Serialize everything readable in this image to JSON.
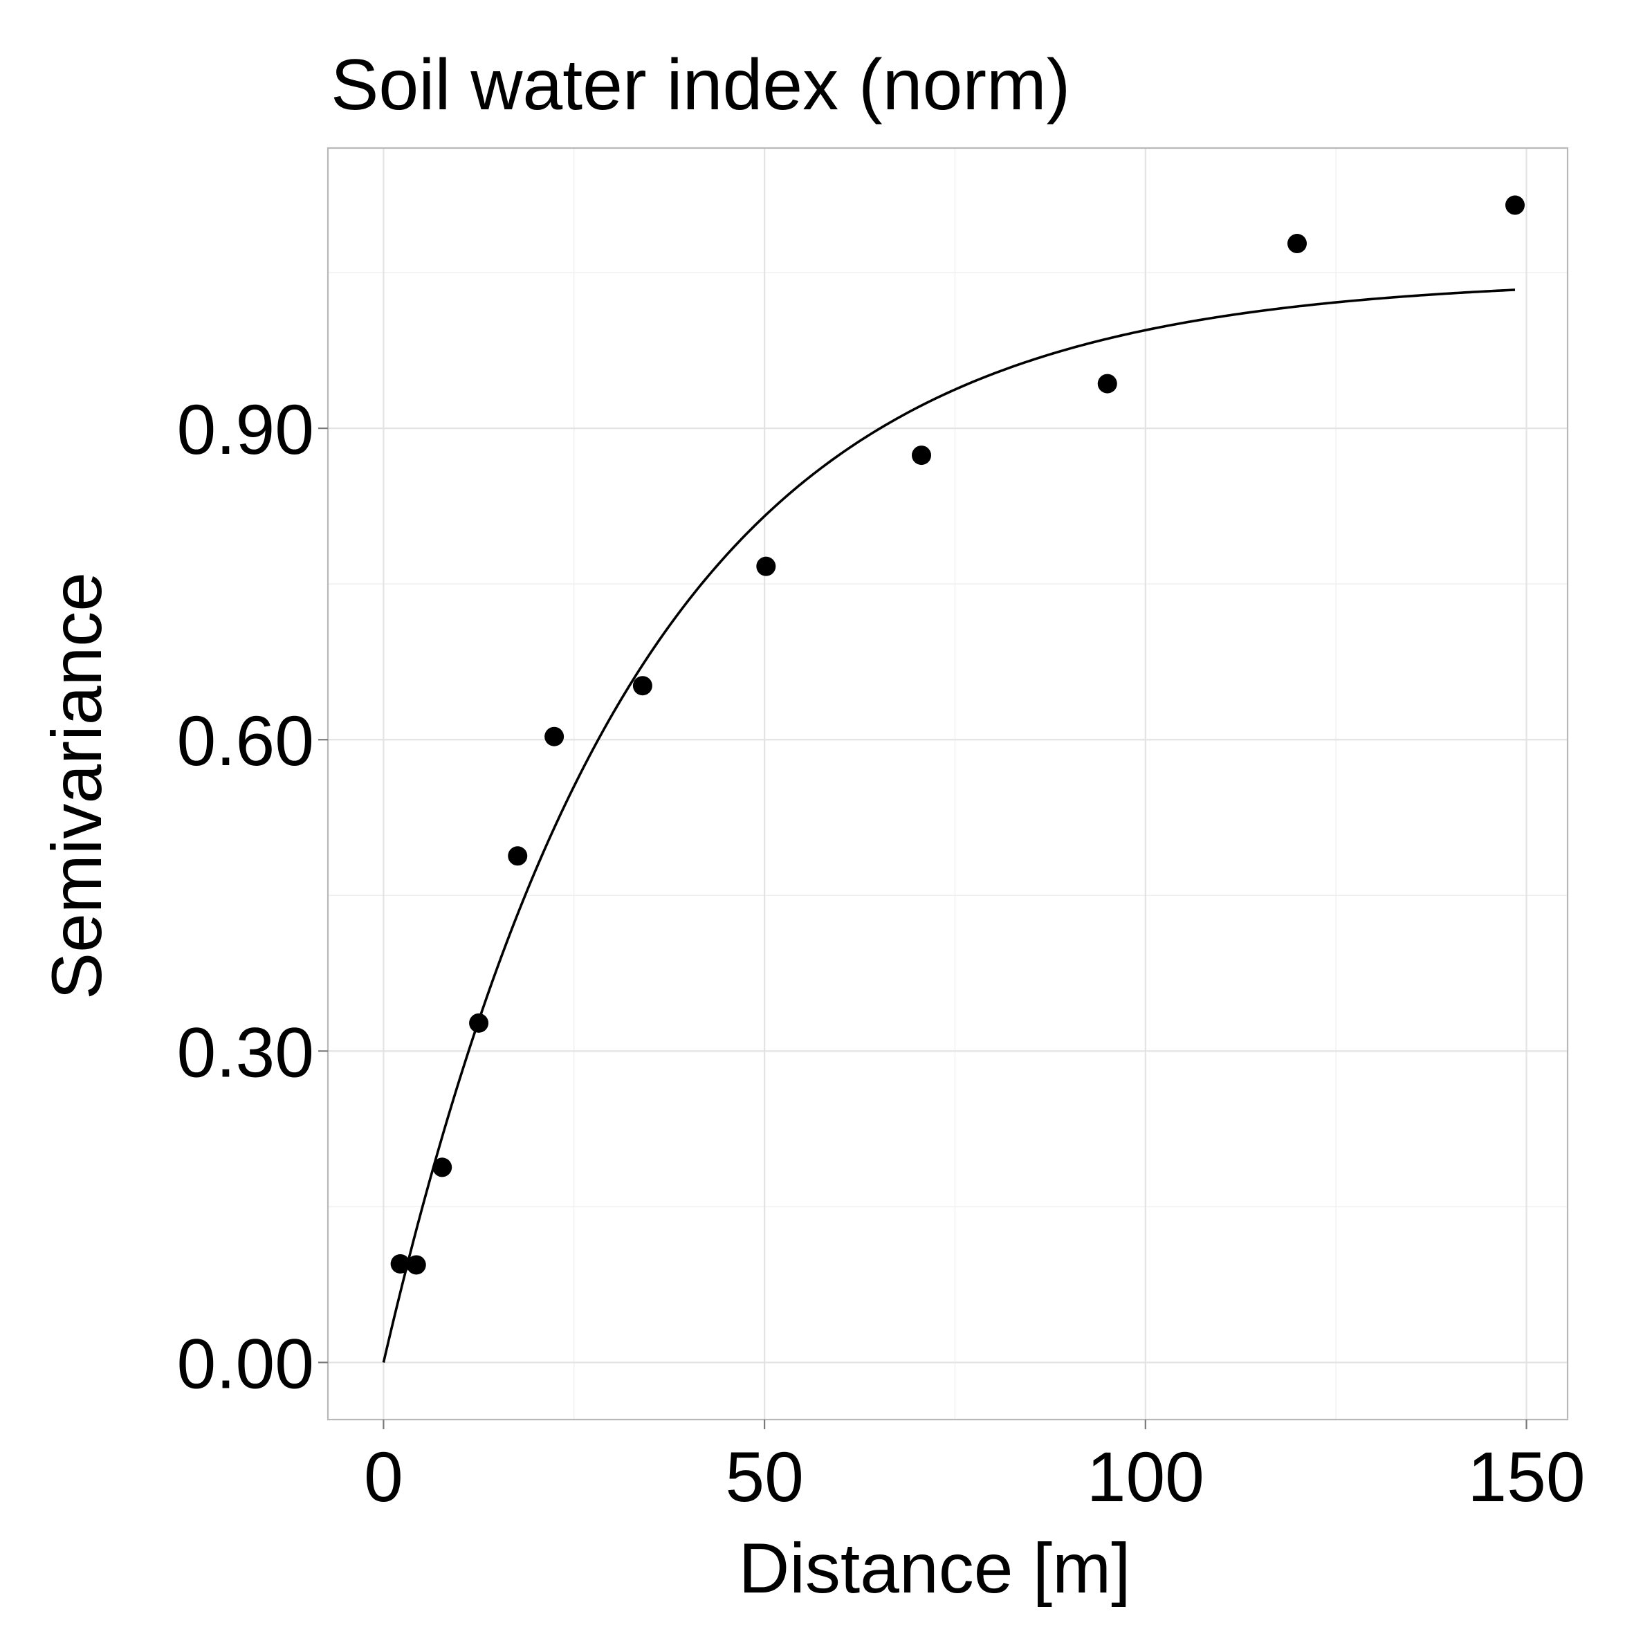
{
  "chart_data": {
    "type": "scatter",
    "title": "Soil water index (norm)",
    "xlabel": "Distance [m]",
    "ylabel": "Semivariance",
    "xlim": [
      -7.3,
      155.4
    ],
    "ylim": [
      -0.055,
      1.17
    ],
    "x_ticks": [
      0,
      50,
      100,
      150
    ],
    "x_tick_labels": [
      "0",
      "50",
      "100",
      "150"
    ],
    "y_ticks": [
      0.0,
      0.3,
      0.6,
      0.9
    ],
    "y_tick_labels": [
      "0.00",
      "0.30",
      "0.60",
      "0.90"
    ],
    "grid": true,
    "legend": "none",
    "series": [
      {
        "type": "scatter",
        "x": [
          2.2,
          4.3,
          7.7,
          12.5,
          17.6,
          22.4,
          34.0,
          50.2,
          70.6,
          95.0,
          119.9,
          148.5
        ],
        "y": [
          0.095,
          0.094,
          0.188,
          0.327,
          0.488,
          0.603,
          0.652,
          0.767,
          0.874,
          0.943,
          1.078,
          1.115
        ]
      },
      {
        "type": "line",
        "model": "exponential",
        "nugget": 0.0,
        "sill": 1.045,
        "range": 33.0,
        "x_range": [
          0,
          148.5
        ]
      }
    ],
    "colors": {
      "points": "#000000",
      "line": "#000000",
      "grid": "#e3e3e3",
      "border": "#b8b8b8"
    }
  }
}
